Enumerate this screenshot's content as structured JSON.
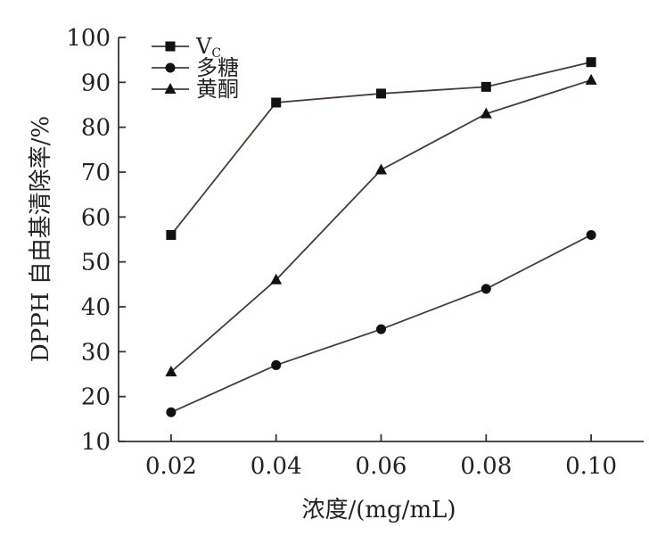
{
  "chart_data": {
    "type": "line",
    "x": [
      "0.02",
      "0.04",
      "0.06",
      "0.08",
      "0.10"
    ],
    "x_values": [
      0.02,
      0.04,
      0.06,
      0.08,
      0.1
    ],
    "xlim": [
      0.01,
      0.11
    ],
    "ylim": [
      10,
      100
    ],
    "yticks": [
      10,
      20,
      30,
      40,
      50,
      60,
      70,
      80,
      90,
      100
    ],
    "xlabel": "浓度/(mg/mL)",
    "ylabel": "DPPH 自由基清除率/%",
    "grid": false,
    "legend_position": "top-left",
    "series": [
      {
        "name_main": "V",
        "name_sub": "C",
        "marker": "square",
        "values": [
          56,
          85.5,
          87.5,
          89,
          94.5
        ]
      },
      {
        "name": "多糖",
        "marker": "circle",
        "values": [
          16.5,
          27,
          35,
          44,
          56
        ]
      },
      {
        "name": "黄酮",
        "marker": "triangle",
        "values": [
          25.5,
          46,
          70.5,
          83,
          90.5
        ]
      }
    ]
  }
}
